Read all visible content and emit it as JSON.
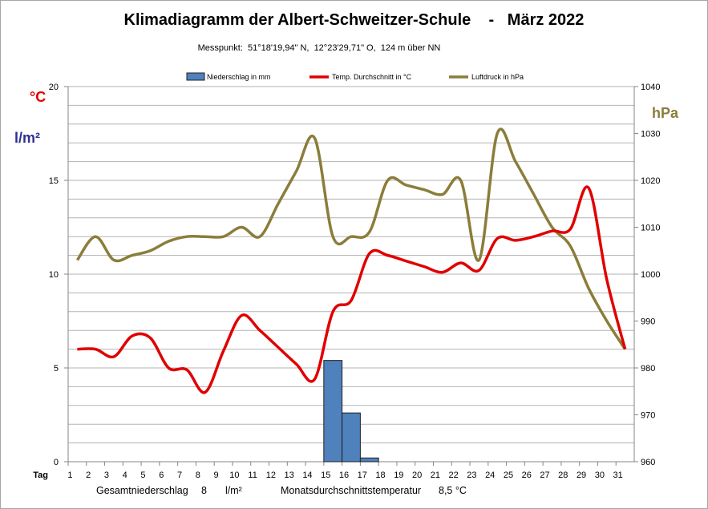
{
  "title": "Klimadiagramm der Albert-Schweitzer-Schule    -   März 2022",
  "subtitle": "Messpunkt:  51°18'19,94\" N,  12°23'29,71\" O,  124 m über NN",
  "units": {
    "temp": "°C",
    "precip": "l/m²",
    "pressure": "hPa"
  },
  "footer": {
    "total_precip_label": "Gesamtniederschlag",
    "total_precip_value": "8",
    "total_precip_unit": "l/m²",
    "avg_temp_label": "Monatsdurchschnittstemperatur",
    "avg_temp_value": "8,5 °C"
  },
  "colors": {
    "precip": "#4f81bd",
    "temp": "#e00000",
    "pressure": "#8b7d3a",
    "temp_label": "#e00000",
    "precip_label": "#2e3192",
    "pressure_label": "#8b7d3a"
  },
  "chart_data": {
    "type": "bar+line",
    "x_label": "Tag",
    "categories": [
      "1",
      "2",
      "3",
      "4",
      "5",
      "6",
      "7",
      "8",
      "9",
      "10",
      "11",
      "12",
      "13",
      "14",
      "15",
      "16",
      "17",
      "18",
      "19",
      "20",
      "21",
      "22",
      "23",
      "24",
      "25",
      "26",
      "27",
      "28",
      "29",
      "30",
      "31"
    ],
    "left_axis": {
      "min": 0,
      "max": 20,
      "ticks": [
        0,
        5,
        10,
        15,
        20
      ]
    },
    "right_axis": {
      "min": 960,
      "max": 1040,
      "ticks": [
        960,
        970,
        980,
        990,
        1000,
        1010,
        1020,
        1030,
        1040
      ]
    },
    "grid": true,
    "legend_position": "top",
    "series": [
      {
        "name": "Niederschlag in mm",
        "type": "bar",
        "axis": "left",
        "values": [
          0,
          0,
          0,
          0,
          0,
          0,
          0,
          0,
          0,
          0,
          0,
          0,
          0,
          0,
          5.4,
          2.6,
          0.2,
          0,
          0,
          0,
          0,
          0,
          0,
          0,
          0,
          0,
          0,
          0,
          0,
          0,
          0
        ]
      },
      {
        "name": "Temp. Durchschnitt in °C",
        "type": "line",
        "axis": "left",
        "values": [
          6.0,
          6.0,
          5.6,
          6.7,
          6.6,
          5.0,
          4.9,
          3.7,
          5.9,
          7.8,
          7.0,
          6.1,
          5.2,
          4.4,
          8.0,
          8.6,
          11.1,
          11.0,
          10.7,
          10.4,
          10.1,
          10.6,
          10.2,
          11.9,
          11.8,
          12.0,
          12.3,
          12.4,
          14.6,
          9.7,
          6.0
        ]
      },
      {
        "name": "Luftdruck in hPa",
        "type": "line",
        "axis": "right",
        "values": [
          1003,
          1008,
          1003,
          1004,
          1005,
          1007,
          1008,
          1008,
          1008,
          1010,
          1008,
          1015,
          1022,
          1029,
          1008,
          1008,
          1009,
          1020,
          1019,
          1018,
          1017,
          1020,
          1003,
          1030,
          1024,
          1017,
          1010,
          1006,
          997,
          990,
          984
        ]
      }
    ]
  }
}
